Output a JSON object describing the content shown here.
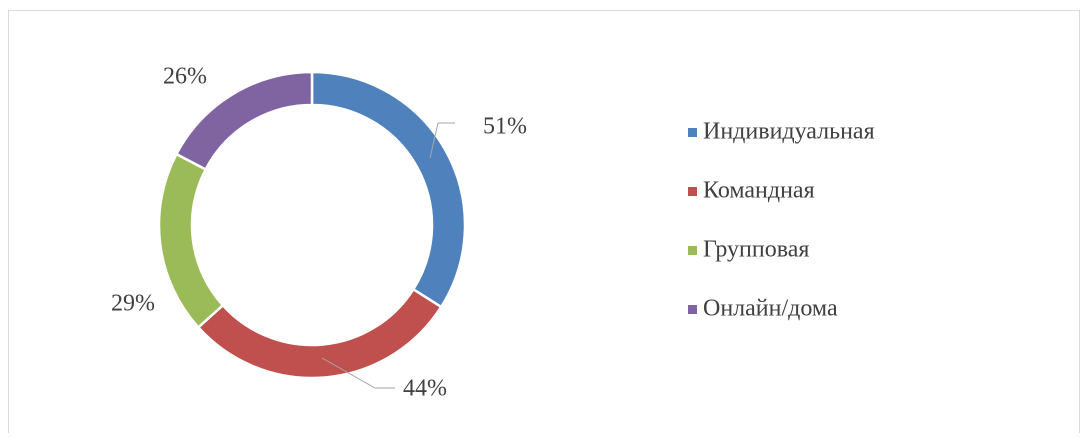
{
  "chart_data": {
    "type": "doughnut",
    "categories": [
      "Индивидуальная",
      "Командная",
      "Групповая",
      "Онлайн/дома"
    ],
    "values": [
      51,
      44,
      29,
      26
    ],
    "value_labels": [
      "51%",
      "44%",
      "29%",
      "26%"
    ],
    "colors": [
      "#4f81bd",
      "#c0504d",
      "#9bbb59",
      "#8064a2"
    ],
    "legend": "right"
  }
}
